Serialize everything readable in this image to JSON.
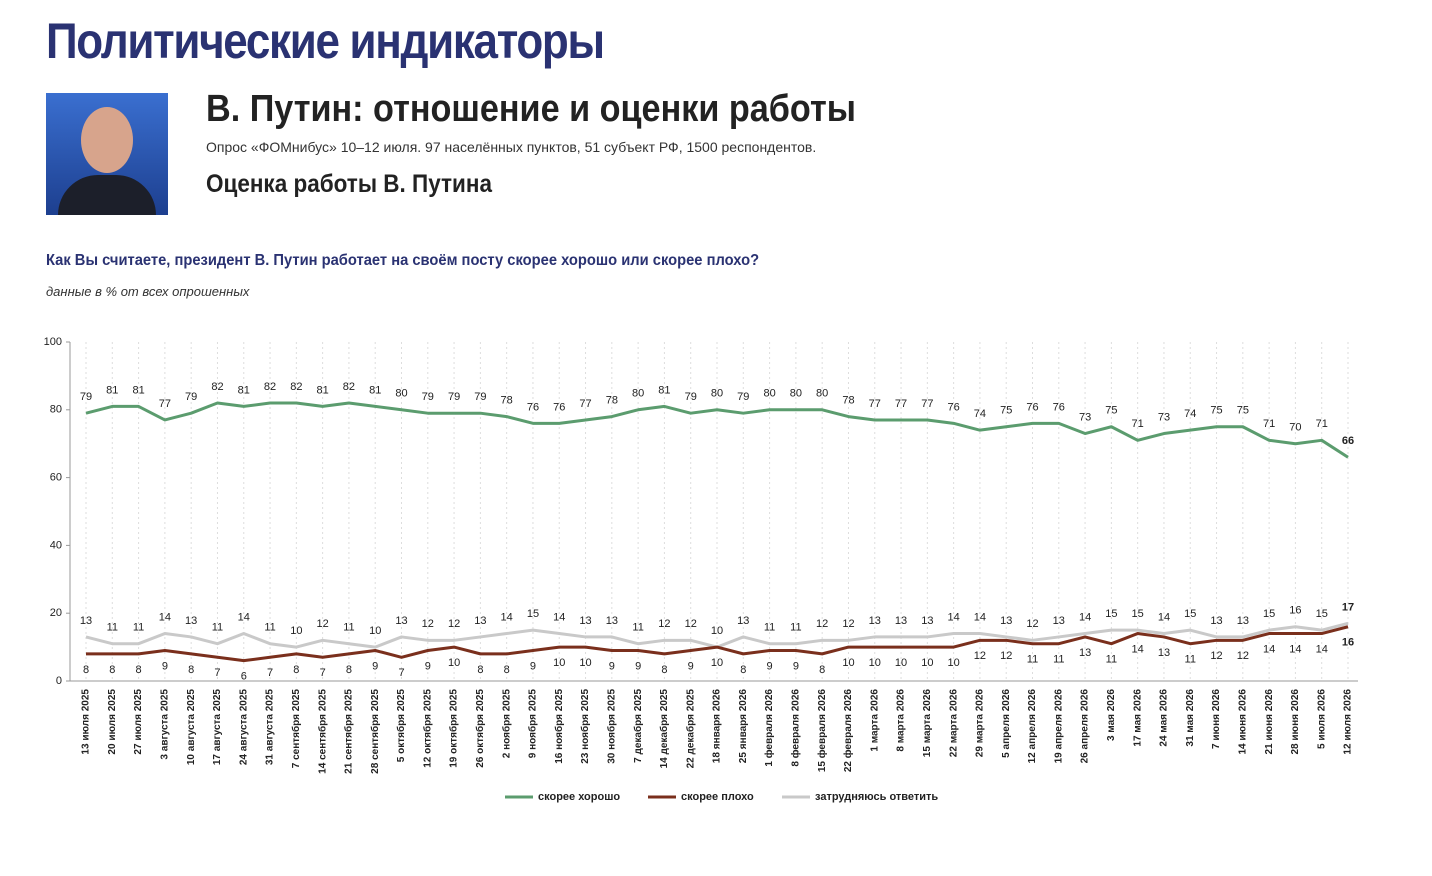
{
  "header": {
    "title": "Политические индикаторы",
    "subtitle": "В. Путин: отношение и оценки работы",
    "survey": "Опрос «ФОМнибус» 10–12 июля. 97 населённых пунктов, 51 субъект РФ, 1500 респондентов."
  },
  "chart_data": {
    "type": "line",
    "title": "Оценка работы В. Путина",
    "question": "Как Вы считаете, президент В. Путин работает на своём посту скорее хорошо или скорее плохо?",
    "note": "данные в % от всех опрошенных",
    "categories": [
      "13 июля 2025",
      "20 июля 2025",
      "27 июля 2025",
      "3 августа 2025",
      "10 августа 2025",
      "17 августа 2025",
      "24 августа 2025",
      "31 августа 2025",
      "7 сентября 2025",
      "14 сентября 2025",
      "21 сентября 2025",
      "28 сентября 2025",
      "5 октября 2025",
      "12 октября 2025",
      "19 октября 2025",
      "26 октября 2025",
      "2 ноября 2025",
      "9 ноября 2025",
      "16 ноября 2025",
      "23 ноября 2025",
      "30 ноября 2025",
      "7 декабря 2025",
      "14 декабря 2025",
      "22 декабря 2025",
      "18 января 2026",
      "25 января 2026",
      "1 февраля 2026",
      "8 февраля 2026",
      "15 февраля 2026",
      "22 февраля 2026",
      "1 марта 2026",
      "8 марта 2026",
      "15 марта 2026",
      "22 марта 2026",
      "29 марта 2026",
      "5 апреля 2026",
      "12 апреля 2026",
      "19 апреля 2026",
      "26 апреля 2026",
      "3 мая 2026",
      "17 мая 2026",
      "24 мая 2026",
      "31 мая 2026",
      "7 июня 2026",
      "14 июня 2026",
      "21 июня 2026",
      "28 июня 2026",
      "5 июля 2026",
      "12 июля 2026"
    ],
    "series": [
      {
        "name": "скорее хорошо",
        "color": "#5b9c6e",
        "values": [
          79,
          81,
          81,
          77,
          79,
          82,
          81,
          82,
          82,
          81,
          82,
          81,
          80,
          79,
          79,
          79,
          78,
          76,
          76,
          77,
          78,
          80,
          81,
          79,
          80,
          79,
          80,
          80,
          80,
          78,
          77,
          77,
          77,
          76,
          74,
          75,
          76,
          76,
          73,
          75,
          71,
          73,
          74,
          75,
          75,
          71,
          70,
          71,
          66
        ]
      },
      {
        "name": "скорее плохо",
        "color": "#7a2f1c",
        "values": [
          8,
          8,
          8,
          9,
          8,
          7,
          6,
          7,
          8,
          7,
          8,
          9,
          7,
          9,
          10,
          8,
          8,
          9,
          10,
          10,
          9,
          9,
          8,
          9,
          10,
          8,
          9,
          9,
          8,
          10,
          10,
          10,
          10,
          10,
          12,
          12,
          11,
          11,
          13,
          11,
          14,
          13,
          11,
          12,
          12,
          14,
          14,
          14,
          16
        ]
      },
      {
        "name": "затрудняюсь ответить",
        "color": "#c9c9c9",
        "values": [
          13,
          11,
          11,
          14,
          13,
          11,
          14,
          11,
          10,
          12,
          11,
          10,
          13,
          12,
          12,
          13,
          14,
          15,
          14,
          13,
          13,
          11,
          12,
          12,
          10,
          13,
          11,
          11,
          12,
          12,
          13,
          13,
          13,
          14,
          14,
          13,
          12,
          13,
          14,
          15,
          15,
          14,
          15,
          13,
          13,
          15,
          16,
          15,
          17
        ]
      }
    ],
    "ylim": [
      0,
      100
    ],
    "yticks": [
      0,
      20,
      40,
      60,
      80,
      100
    ],
    "grid": true,
    "legend": "bottom"
  }
}
